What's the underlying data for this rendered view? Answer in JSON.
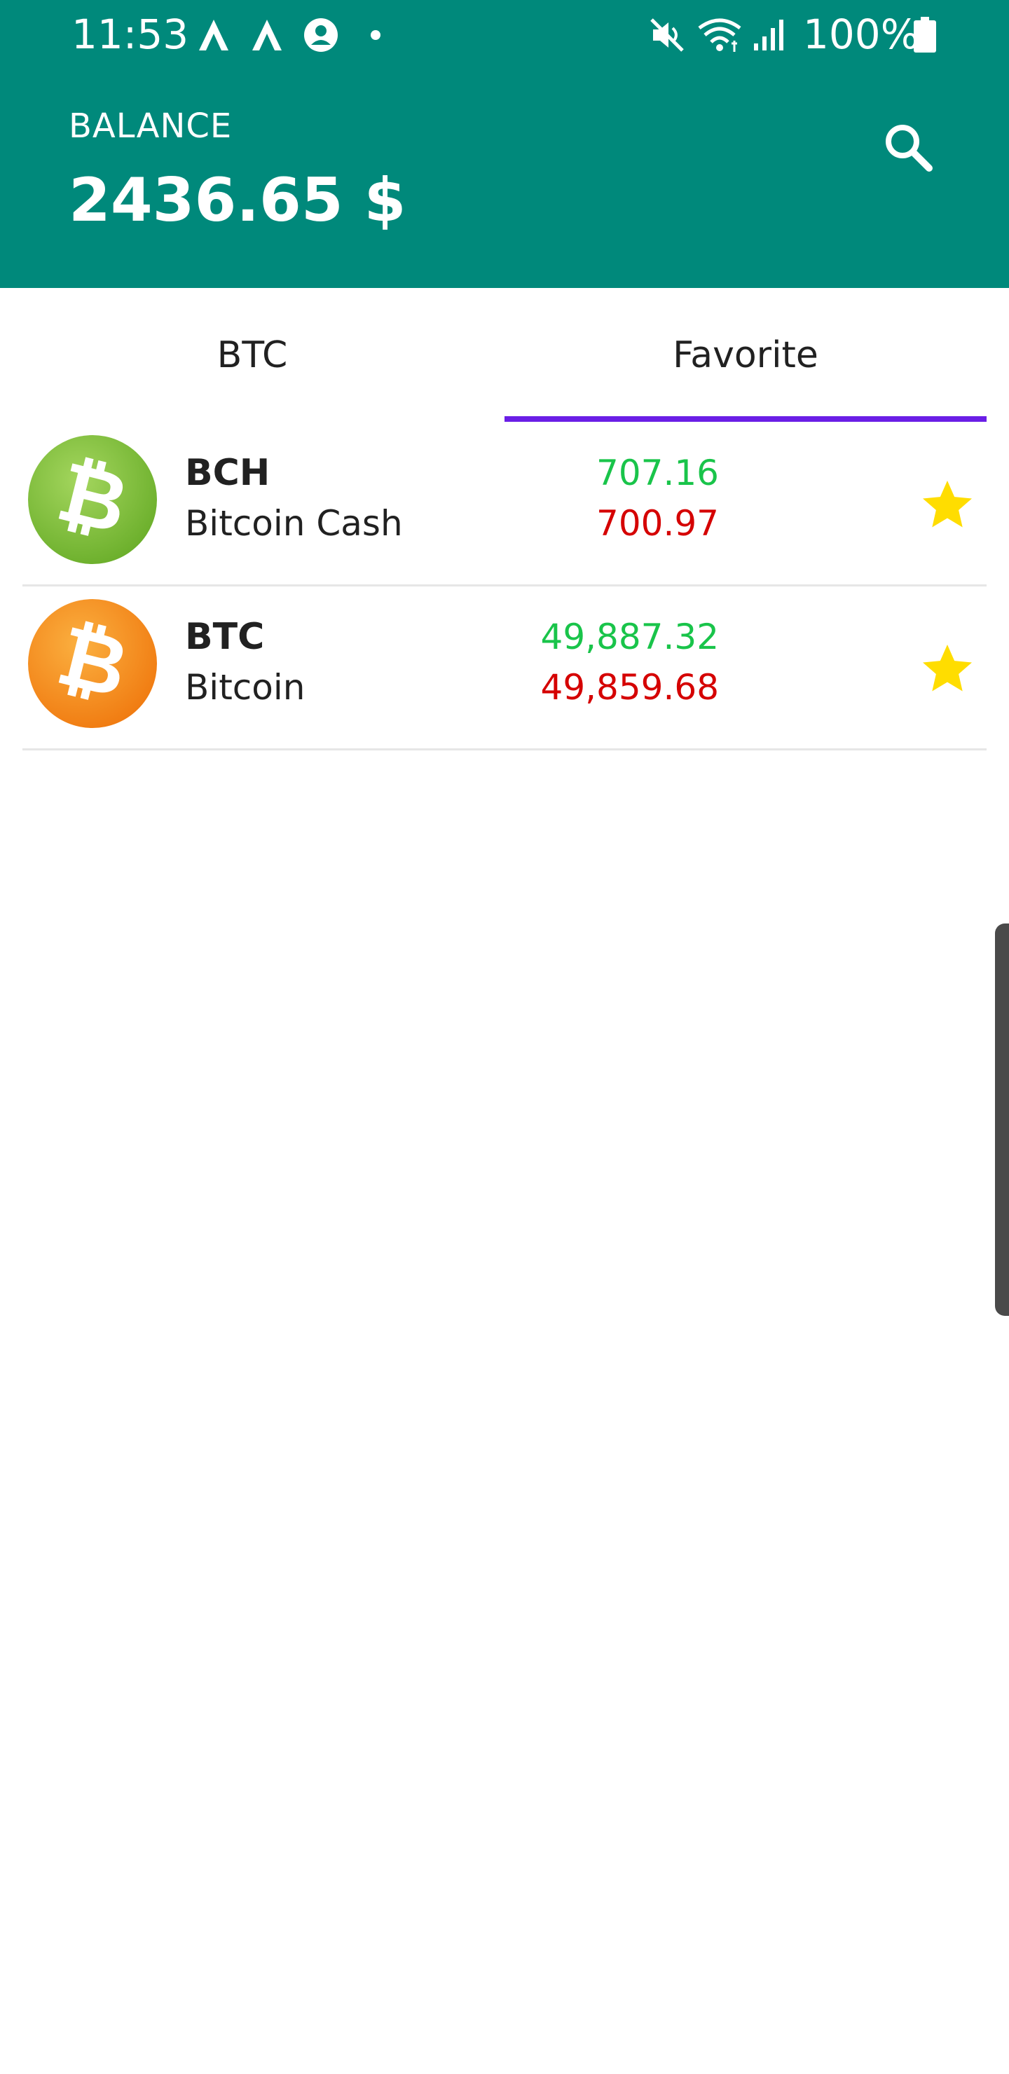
{
  "status_bar": {
    "time": "11:53",
    "battery_percent": "100%",
    "icons": [
      "notification-a-icon",
      "notification-a-icon",
      "account-icon",
      "dot-icon",
      "mute-icon",
      "wifi-icon",
      "signal-icon",
      "battery-icon"
    ]
  },
  "header": {
    "balance_label": "BALANCE",
    "balance_value": "2436.65 $",
    "search_icon": "search-icon",
    "color": "#00897b"
  },
  "tabs": {
    "items": [
      {
        "label": "BTC",
        "selected": false
      },
      {
        "label": "Favorite",
        "selected": true
      }
    ],
    "indicator_color": "#6a1ee6"
  },
  "coins": [
    {
      "symbol": "BCH",
      "name": "Bitcoin Cash",
      "buy_price": "707.16",
      "sell_price": "700.97",
      "logo_color": "#8cc63f",
      "favorite": true
    },
    {
      "symbol": "BTC",
      "name": "Bitcoin",
      "buy_price": "49,887.32",
      "sell_price": "49,859.68",
      "logo_color": "#f7931a",
      "favorite": true
    }
  ],
  "colors": {
    "buy": "#19c44a",
    "sell": "#d50000",
    "star": "#ffdd00"
  }
}
